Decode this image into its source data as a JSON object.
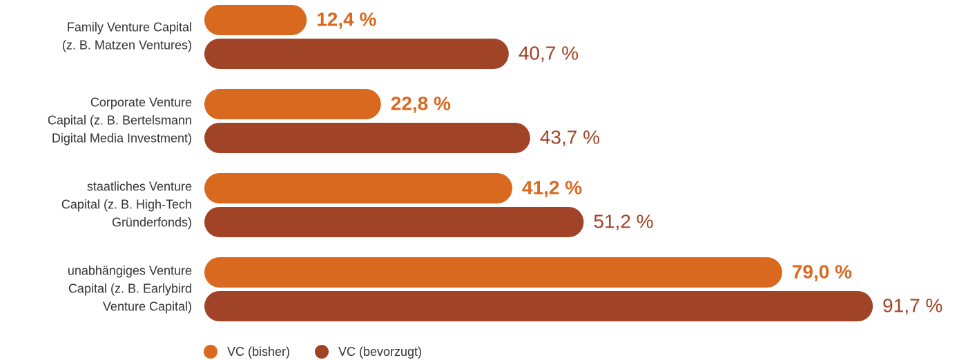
{
  "chart_data": {
    "type": "bar",
    "orientation": "horizontal",
    "categories": [
      [
        "Family Venture Capital",
        "(z. B. Matzen Ventures)"
      ],
      [
        "Corporate Venture",
        "Capital (z. B. Bertelsmann",
        "Digital Media Investment)"
      ],
      [
        "staatliches Venture",
        "Capital (z. B. High-Tech",
        "Gründerfonds)"
      ],
      [
        "unabhängiges Venture",
        "Capital (z. B. Earlybird",
        "Venture Capital)"
      ]
    ],
    "series": [
      {
        "name": "VC (bisher)",
        "color": "#d8691f",
        "values": [
          12.4,
          22.8,
          41.2,
          79.0
        ],
        "value_labels": [
          "12,4 %",
          "22,8 %",
          "41,2 %",
          "79,0 %"
        ]
      },
      {
        "name": "VC (bevorzugt)",
        "color": "#a04327",
        "values": [
          40.7,
          43.7,
          51.2,
          91.7
        ],
        "value_labels": [
          "40,7 %",
          "43,7 %",
          "51,2 %",
          "91,7 %"
        ]
      }
    ],
    "legend": "bottom"
  }
}
